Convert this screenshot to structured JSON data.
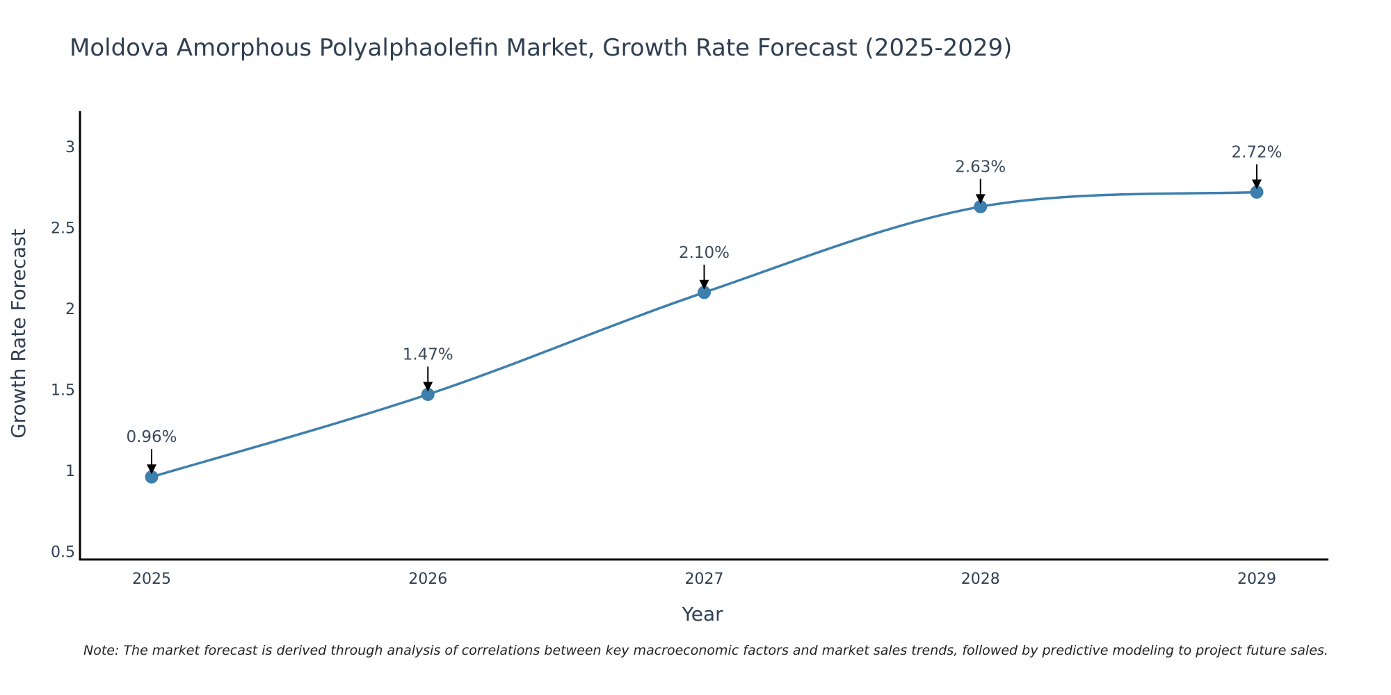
{
  "chart_data": {
    "type": "line",
    "title": "Moldova Amorphous Polyalphaolefin Market, Growth Rate Forecast (2025-2029)",
    "xlabel": "Year",
    "ylabel": "Growth Rate Forecast",
    "categories": [
      "2025",
      "2026",
      "2027",
      "2028",
      "2029"
    ],
    "series": [
      {
        "name": "Growth Rate Forecast",
        "values": [
          0.96,
          1.47,
          2.1,
          2.63,
          2.72
        ],
        "labels": [
          "0.96%",
          "1.47%",
          "2.10%",
          "2.63%",
          "2.72%"
        ]
      }
    ],
    "ylim": [
      0.45,
      3.22
    ],
    "yticks": [
      0.5,
      1,
      1.5,
      2,
      2.5,
      3
    ],
    "ytick_labels": [
      "0.5",
      "1",
      "1.5",
      "2",
      "2.5",
      "3"
    ],
    "grid": false,
    "line_color": "#3d7fae",
    "marker_color": "#3d7fae",
    "axis_color": "#000000",
    "note": "Note: The market forecast is derived through analysis of correlations between key macroeconomic factors and market sales trends, followed by predictive modeling to project future sales."
  }
}
